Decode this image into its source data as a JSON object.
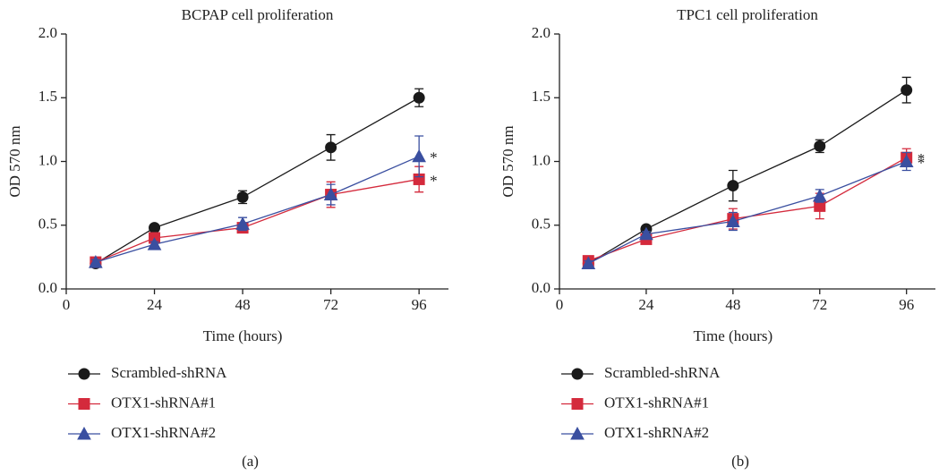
{
  "chart_data": [
    {
      "type": "line",
      "title": "BCPAP cell proliferation",
      "xlabel": "Time (hours)",
      "ylabel": "OD 570 nm",
      "caption": "(a)",
      "xlim": [
        0,
        104
      ],
      "xticks": [
        0,
        24,
        48,
        72,
        96
      ],
      "ylim": [
        0,
        2
      ],
      "yticks": [
        {
          "value": 0,
          "label": "0.0"
        },
        {
          "value": 0.5,
          "label": "0.5"
        },
        {
          "value": 1,
          "label": "1.0"
        },
        {
          "value": 1.5,
          "label": "1.5"
        },
        {
          "value": 2,
          "label": "2.0"
        }
      ],
      "x": [
        8,
        24,
        48,
        72,
        96
      ],
      "series": [
        {
          "name": "Scrambled-shRNA",
          "color": "#1a1a1a",
          "marker": "circle",
          "values": [
            0.2,
            0.48,
            0.72,
            1.11,
            1.5
          ],
          "errors": [
            0.02,
            0.02,
            0.05,
            0.1,
            0.07
          ]
        },
        {
          "name": "OTX1-shRNA#1",
          "color": "#d42a3c",
          "marker": "square",
          "values": [
            0.21,
            0.4,
            0.48,
            0.74,
            0.86
          ],
          "errors": [
            0.03,
            0.02,
            0.03,
            0.1,
            0.1
          ],
          "annotation": "*"
        },
        {
          "name": "OTX1-shRNA#2",
          "color": "#3a4fa0",
          "marker": "triangle",
          "values": [
            0.21,
            0.35,
            0.51,
            0.74,
            1.04
          ],
          "errors": [
            0.02,
            0.02,
            0.05,
            0.08,
            0.16
          ],
          "annotation": "*"
        }
      ]
    },
    {
      "type": "line",
      "title": "TPC1 cell proliferation",
      "xlabel": "Time (hours)",
      "ylabel": "OD 570 nm",
      "caption": "(b)",
      "xlim": [
        0,
        104
      ],
      "xticks": [
        0,
        24,
        48,
        72,
        96
      ],
      "ylim": [
        0,
        2
      ],
      "yticks": [
        {
          "value": 0,
          "label": "0.0"
        },
        {
          "value": 0.5,
          "label": "0.5"
        },
        {
          "value": 1,
          "label": "1.0"
        },
        {
          "value": 1.5,
          "label": "1.5"
        },
        {
          "value": 2,
          "label": "2.0"
        }
      ],
      "x": [
        8,
        24,
        48,
        72,
        96
      ],
      "series": [
        {
          "name": "Scrambled-shRNA",
          "color": "#1a1a1a",
          "marker": "circle",
          "values": [
            0.2,
            0.47,
            0.81,
            1.12,
            1.56
          ],
          "errors": [
            0.02,
            0.02,
            0.12,
            0.05,
            0.1
          ]
        },
        {
          "name": "OTX1-shRNA#1",
          "color": "#d42a3c",
          "marker": "square",
          "values": [
            0.22,
            0.39,
            0.55,
            0.65,
            1.03
          ],
          "errors": [
            0.02,
            0.02,
            0.08,
            0.1,
            0.07
          ],
          "annotation": "*"
        },
        {
          "name": "OTX1-shRNA#2",
          "color": "#3a4fa0",
          "marker": "triangle",
          "values": [
            0.2,
            0.43,
            0.53,
            0.73,
            1.0
          ],
          "errors": [
            0.02,
            0.02,
            0.07,
            0.05,
            0.07
          ],
          "annotation": "*"
        }
      ]
    }
  ]
}
